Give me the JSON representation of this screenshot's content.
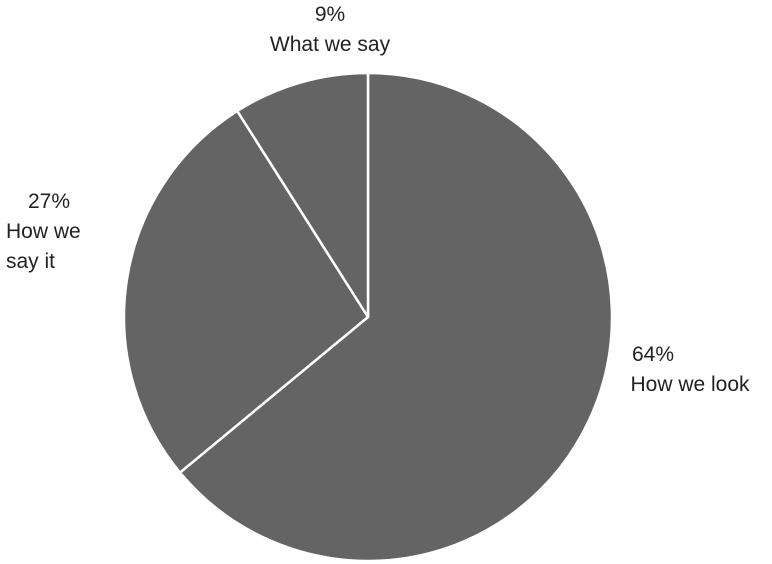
{
  "chart_data": {
    "type": "pie",
    "slices": [
      {
        "label": "How we look",
        "value": 64,
        "value_label": "64%"
      },
      {
        "label": "How we say it",
        "value": 27,
        "value_label": "27%",
        "label_lines": [
          "How we",
          "say it"
        ]
      },
      {
        "label": "What we say",
        "value": 9,
        "value_label": "9%"
      }
    ],
    "slice_color": "#646464",
    "separator_color": "#ffffff",
    "legend": "none"
  }
}
